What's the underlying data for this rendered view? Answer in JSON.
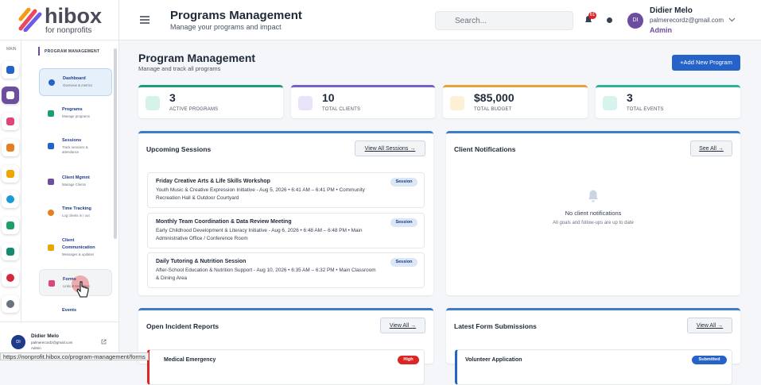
{
  "logo": {
    "name": "hibox",
    "tagline": "for nonprofits"
  },
  "rail": {
    "label": "MAIN"
  },
  "sidebar": {
    "section": "PROGRAM MANAGEMENT",
    "items": [
      {
        "title": "Dashboard",
        "desc": "Overview & metrics"
      },
      {
        "title": "Programs",
        "desc": "Manage programs"
      },
      {
        "title": "Sessions",
        "desc": "Track sessions & attendance"
      },
      {
        "title": "Client Mgmnt",
        "desc": "Manage Clients"
      },
      {
        "title": "Time Tracking",
        "desc": "Log clients in / out"
      },
      {
        "title": "Client Communication",
        "desc": "Messages & updates"
      },
      {
        "title": "Forms",
        "desc": "Links & templates"
      },
      {
        "title": "Events"
      }
    ]
  },
  "user": {
    "name": "Didier Melo",
    "email": "palmerecordz@gmail.com",
    "role": "Admin",
    "initials": "DI"
  },
  "header": {
    "title": "Programs Management",
    "subtitle": "Manage your programs and impact",
    "search_placeholder": "Search...",
    "notification_count": 61
  },
  "page": {
    "title": "Program Management",
    "subtitle": "Manage and track all programs",
    "button": "+Add New Program"
  },
  "stats": [
    {
      "value": 3,
      "label": "ACTIVE PROGRAMS"
    },
    {
      "value": 10,
      "label": "TOTAL CLIENTS"
    },
    {
      "value": "$85,000",
      "label": "TOTAL BUDGET"
    },
    {
      "value": 3,
      "label": "TOTAL EVENTS"
    }
  ],
  "sessions": {
    "title": "Upcoming Sessions",
    "link": "View All Sessions →",
    "items": [
      {
        "title": "Friday Creative Arts & Life Skills Workshop",
        "details": "Youth Music & Creative Expression Initiative - Aug 5, 2026 • 6:41 AM – 6:41 PM • Community Recreation Hall & Outdoor Courtyard",
        "tag": "Session"
      },
      {
        "title": "Monthly Team Coordination & Data Review Meeting",
        "details": "Early Childhood Development & Literacy Initiative - Aug 6, 2026 • 6:48 AM – 6:48 PM • Main Administrative Office / Conference Room",
        "tag": "Session"
      },
      {
        "title": "Daily Tutoring & Nutrition Session",
        "details": "After-School Education & Nutrition Support - Aug 10, 2026 • 6:35 AM – 6:32 PM • Main Classroom & Dining Area",
        "tag": "Session"
      }
    ]
  },
  "notifications": {
    "title": "Client Notifications",
    "link": "See All →",
    "empty_title": "No client notifications",
    "empty_desc": "All goals and follow-ups are up to date"
  },
  "incidents": {
    "title": "Open Incident Reports",
    "link": "View All →",
    "items": [
      {
        "title": "Medical Emergency",
        "tag": "High"
      }
    ]
  },
  "forms": {
    "title": "Latest Form Submissions",
    "link": "View All →",
    "items": [
      {
        "title": "Volunteer Application",
        "tag": "Submitted"
      }
    ]
  },
  "status_bar": "https://nonprofit.hibox.co/program-management/forms"
}
